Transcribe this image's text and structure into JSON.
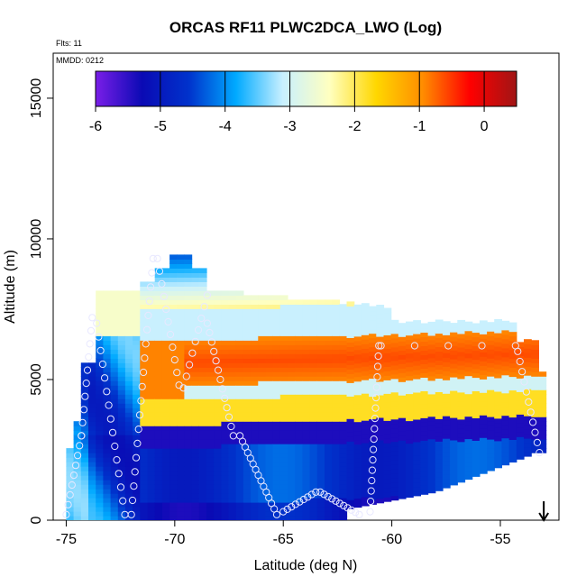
{
  "chart_data": {
    "type": "heatmap",
    "title": "ORCAS RF11 PLWC2DCA_LWO (Log)",
    "flights_note": "Flts: 11",
    "date_note": "MMDD: 0212",
    "xlabel": "Latitude (deg N)",
    "ylabel": "Altitude (m)",
    "xlim": [
      -75.6,
      -52.3
    ],
    "ylim": [
      0,
      16600
    ],
    "x_ticks": [
      -75,
      -70,
      -65,
      -60,
      -55
    ],
    "x_tick_labels": [
      "-75",
      "-70",
      "-65",
      "-60",
      "-55"
    ],
    "y_ticks": [
      0,
      5000,
      10000,
      15000
    ],
    "y_tick_labels": [
      "0",
      "5000",
      "10000",
      "15000"
    ],
    "colorbar": {
      "ticks": [
        -6,
        -5,
        -4,
        -3,
        -2,
        -1,
        0
      ],
      "tick_labels": [
        "-6",
        "-5",
        "-4",
        "-3",
        "-2",
        "-1",
        "0"
      ],
      "range": [
        -6,
        0.5
      ],
      "stops": [
        "#7a1ee8",
        "#0a0ab4",
        "#0033cc",
        "#00aaff",
        "#c8f0ff",
        "#ffffc0",
        "#ffd700",
        "#ff8c00",
        "#ff0000",
        "#a01515"
      ]
    },
    "field_description_bands": [
      {
        "lat_from": -73.5,
        "lat_to": -54,
        "alt_from": 7600,
        "alt_to": 8200,
        "value": -2.3
      },
      {
        "lat_from": -72.5,
        "lat_to": -54,
        "alt_from": 6200,
        "alt_to": 7400,
        "value": -3.0
      },
      {
        "lat_from": -71.5,
        "lat_to": -54,
        "alt_from": 4700,
        "alt_to": 6200,
        "value": -0.8
      },
      {
        "lat_from": -71.0,
        "lat_to": -53.2,
        "alt_from": 4200,
        "alt_to": 4700,
        "value": -3.0
      },
      {
        "lat_from": -72.0,
        "lat_to": -53.2,
        "alt_from": 3500,
        "alt_to": 4200,
        "value": -1.7
      },
      {
        "lat_from": -71.5,
        "lat_to": -53.2,
        "alt_from": 2700,
        "alt_to": 3500,
        "value": -5.4
      },
      {
        "lat_from": -74.5,
        "lat_to": -53.5,
        "alt_from": 200,
        "alt_to": 2700,
        "value": -4.8
      }
    ],
    "flight_track_markers": "circles along flight track",
    "arrow_marker_lat": -53.0
  }
}
